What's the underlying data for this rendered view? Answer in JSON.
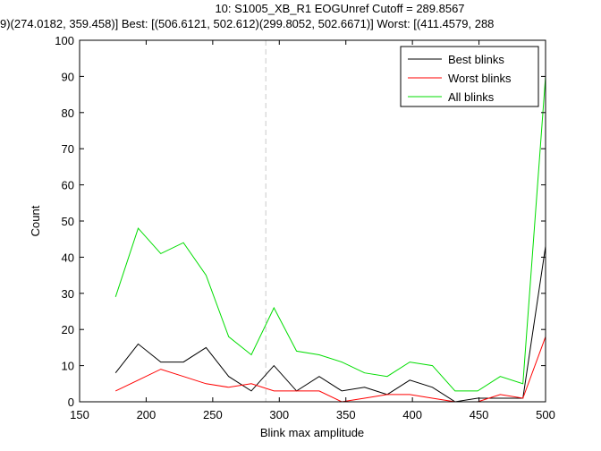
{
  "chart_data": {
    "type": "line",
    "title_line1": "10: S1005_XB_R1 EOGUnref Cutoff = 289.8567",
    "title_line2": "9)(274.0182, 359.458)] Best: [(506.6121, 502.612)(299.8052, 502.6671)] Worst: [(411.4579, 288",
    "xlabel": "Blink max amplitude",
    "ylabel": "Count",
    "xlim": [
      150,
      500
    ],
    "ylim": [
      0,
      100
    ],
    "xticks": [
      150,
      200,
      250,
      300,
      350,
      400,
      450,
      500
    ],
    "yticks": [
      0,
      10,
      20,
      30,
      40,
      50,
      60,
      70,
      80,
      90,
      100
    ],
    "grid": false,
    "legend_position": "top-right",
    "cutoff": 289.8567,
    "x": [
      177,
      194,
      211,
      228,
      245,
      262,
      279,
      296,
      313,
      330,
      347,
      364,
      381,
      398,
      415,
      432,
      449,
      466,
      483,
      500
    ],
    "series": [
      {
        "name": "Best blinks",
        "color": "#000000",
        "values": [
          8,
          16,
          11,
          11,
          15,
          7,
          3,
          10,
          3,
          7,
          3,
          4,
          2,
          6,
          4,
          0,
          1,
          1,
          1,
          43
        ]
      },
      {
        "name": "Worst blinks",
        "color": "#ff0000",
        "values": [
          3,
          6,
          9,
          7,
          5,
          4,
          5,
          3,
          3,
          3,
          0,
          1,
          2,
          2,
          1,
          0,
          0,
          2,
          1,
          18
        ]
      },
      {
        "name": "All blinks",
        "color": "#00dd00",
        "values": [
          29,
          48,
          41,
          44,
          35,
          18,
          13,
          26,
          14,
          13,
          11,
          8,
          7,
          11,
          10,
          3,
          3,
          7,
          5,
          90
        ]
      }
    ]
  }
}
